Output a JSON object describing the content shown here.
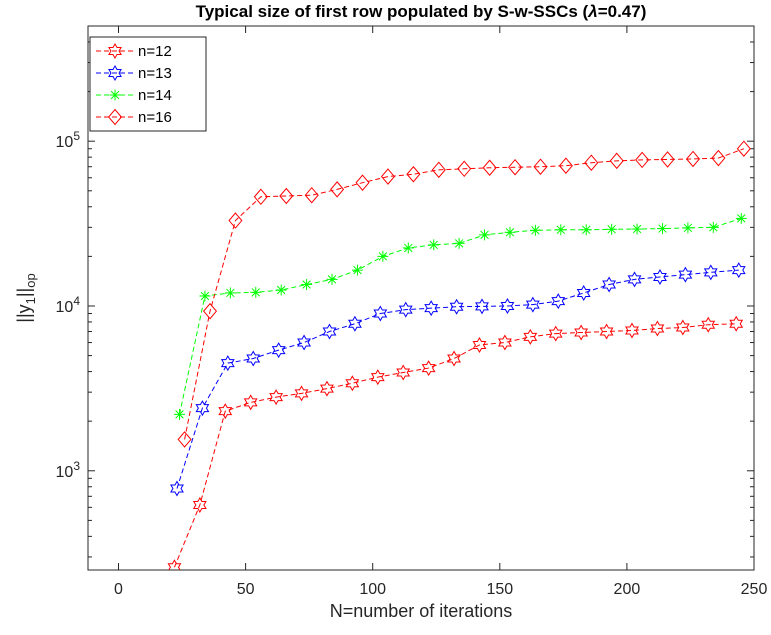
{
  "chart_data": {
    "type": "line",
    "title_prefix": "Typical size of first row populated by S-w-SSCs (",
    "title_lambda": "λ",
    "title_suffix": "=0.47)",
    "xlabel": "N=number of iterations",
    "ylabel_main": "||y",
    "ylabel_sub1": "1",
    "ylabel_mid": "||",
    "ylabel_sub2": "op",
    "xlim": [
      -12,
      250
    ],
    "ylim": [
      250,
      500000
    ],
    "yscale": "log",
    "xticks": [
      0,
      50,
      100,
      150,
      200,
      250
    ],
    "yticks": [
      {
        "value": 1000,
        "base": "10",
        "exp": "3"
      },
      {
        "value": 10000,
        "base": "10",
        "exp": "4"
      },
      {
        "value": 100000,
        "base": "10",
        "exp": "5"
      }
    ],
    "grid": false,
    "legend_position": "top-left",
    "series": [
      {
        "name": "n=12",
        "color": "#ff0000",
        "marker": "hexagram",
        "x": [
          22,
          32,
          42,
          52,
          62,
          72,
          82,
          92,
          102,
          112,
          122,
          132,
          142,
          152,
          162,
          172,
          182,
          192,
          202,
          212,
          222,
          232,
          243
        ],
        "y": [
          260,
          620,
          2300,
          2600,
          2800,
          2950,
          3150,
          3400,
          3700,
          3950,
          4200,
          4800,
          5800,
          6000,
          6500,
          6800,
          6900,
          7000,
          7100,
          7300,
          7400,
          7700,
          7800
        ]
      },
      {
        "name": "n=13",
        "color": "#0000ff",
        "marker": "hexagram",
        "x": [
          23,
          33,
          43,
          53,
          63,
          73,
          83,
          93,
          103,
          113,
          123,
          133,
          143,
          153,
          163,
          173,
          183,
          193,
          203,
          213,
          223,
          233,
          244
        ],
        "y": [
          780,
          2400,
          4500,
          4800,
          5400,
          6000,
          7000,
          7800,
          9000,
          9500,
          9700,
          9900,
          9950,
          10000,
          10200,
          10700,
          12000,
          13500,
          14500,
          15000,
          15500,
          16000,
          16500
        ]
      },
      {
        "name": "n=14",
        "color": "#00ff00",
        "marker": "asterisk",
        "x": [
          24,
          34,
          44,
          54,
          64,
          74,
          84,
          94,
          104,
          114,
          124,
          134,
          144,
          154,
          164,
          174,
          184,
          194,
          204,
          214,
          224,
          234,
          245
        ],
        "y": [
          2200,
          11500,
          12000,
          12100,
          12500,
          13500,
          14500,
          16500,
          20000,
          22500,
          23500,
          24000,
          27000,
          28000,
          28800,
          29000,
          29000,
          29200,
          29300,
          29500,
          29800,
          30000,
          34000
        ]
      },
      {
        "name": "n=16",
        "color": "#ff0000",
        "marker": "diamond",
        "x": [
          26,
          36,
          46,
          56,
          66,
          76,
          86,
          96,
          106,
          116,
          126,
          136,
          146,
          156,
          166,
          176,
          186,
          196,
          206,
          216,
          226,
          236,
          246
        ],
        "y": [
          1550,
          9300,
          33000,
          46000,
          46500,
          47000,
          51000,
          56000,
          61000,
          63000,
          67000,
          68000,
          69000,
          69500,
          70000,
          71000,
          74000,
          76000,
          77000,
          77500,
          78000,
          79000,
          90000
        ]
      }
    ]
  }
}
